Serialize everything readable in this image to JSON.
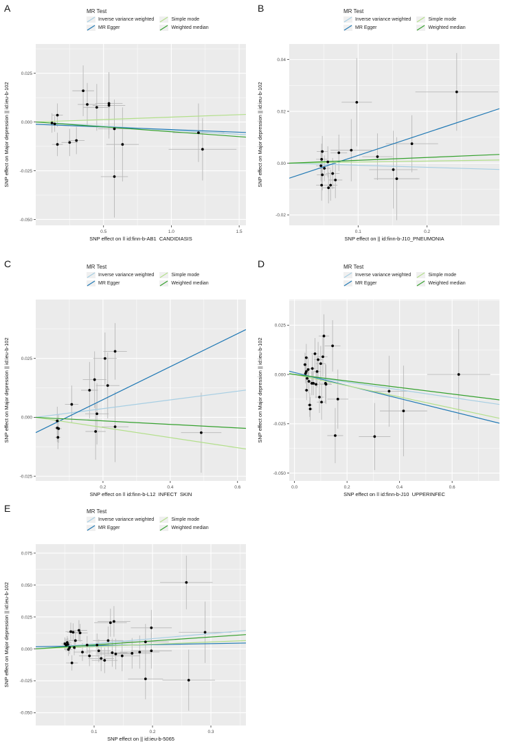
{
  "legend": {
    "title": "MR Test",
    "items": [
      {
        "label": "Inverse variance weighted",
        "color": "#a6cee3"
      },
      {
        "label": "Simple mode",
        "color": "#b2df8a"
      },
      {
        "label": "MR Egger",
        "color": "#1f78b4"
      },
      {
        "label": "Weighted median",
        "color": "#33a02c"
      }
    ]
  },
  "colors": {
    "panel_bg": "#ebebeb",
    "grid": "#ffffff",
    "point": "#000000",
    "errorbar": "#b8b8b8"
  },
  "chart_data": [
    {
      "panel": "A",
      "type": "scatter",
      "xlabel": "SNP effect on  || id:finn-b-AB1_CANDIDIASIS",
      "ylabel": "SNP effect on Major depression || id:ieu-b-102",
      "xlim": [
        0.0,
        1.55
      ],
      "ylim": [
        -0.053,
        0.04
      ],
      "xticks": [
        0.5,
        1.0,
        1.5
      ],
      "xtick_labels": [
        "0.5",
        "1.0",
        "1.5"
      ],
      "yticks": [
        -0.05,
        -0.025,
        0.0,
        0.025
      ],
      "ytick_labels": [
        "-0.050",
        "-0.025",
        "0.000",
        "0.025"
      ],
      "points": [
        {
          "x": 0.12,
          "y": -0.0005,
          "xerr": 0.03,
          "yerr": 0.005
        },
        {
          "x": 0.14,
          "y": -0.001,
          "xerr": 0.03,
          "yerr": 0.004
        },
        {
          "x": 0.16,
          "y": 0.0035,
          "xerr": 0.04,
          "yerr": 0.006
        },
        {
          "x": 0.16,
          "y": -0.0115,
          "xerr": 0.04,
          "yerr": 0.006
        },
        {
          "x": 0.25,
          "y": -0.0105,
          "xerr": 0.06,
          "yerr": 0.007
        },
        {
          "x": 0.3,
          "y": -0.0095,
          "xerr": 0.06,
          "yerr": 0.007
        },
        {
          "x": 0.35,
          "y": 0.016,
          "xerr": 0.08,
          "yerr": 0.013
        },
        {
          "x": 0.38,
          "y": 0.009,
          "xerr": 0.07,
          "yerr": 0.011
        },
        {
          "x": 0.45,
          "y": 0.0075,
          "xerr": 0.1,
          "yerr": 0.012
        },
        {
          "x": 0.54,
          "y": 0.0085,
          "xerr": 0.12,
          "yerr": 0.017
        },
        {
          "x": 0.54,
          "y": 0.0095,
          "xerr": 0.1,
          "yerr": 0.016
        },
        {
          "x": 0.58,
          "y": -0.0035,
          "xerr": 0.12,
          "yerr": 0.015
        },
        {
          "x": 0.58,
          "y": -0.028,
          "xerr": 0.1,
          "yerr": 0.021
        },
        {
          "x": 0.64,
          "y": -0.0115,
          "xerr": 0.12,
          "yerr": 0.019
        },
        {
          "x": 1.2,
          "y": -0.0055,
          "xerr": 0.19,
          "yerr": 0.015
        },
        {
          "x": 1.23,
          "y": -0.014,
          "xerr": 0.25,
          "yerr": 0.016
        }
      ],
      "lines": [
        {
          "method": "Inverse variance weighted",
          "slope": -0.0042,
          "intercept": 0.0
        },
        {
          "method": "MR Egger",
          "slope": -0.0027,
          "intercept": -0.0012
        },
        {
          "method": "Simple mode",
          "slope": 0.0025,
          "intercept": 0.0
        },
        {
          "method": "Weighted median",
          "slope": -0.005,
          "intercept": 0.0
        }
      ]
    },
    {
      "panel": "B",
      "type": "scatter",
      "xlabel": "SNP effect on  || id:finn-b-J10_PNEUMONIA",
      "ylabel": "SNP effect on Major depression || id:ieu-b-102",
      "xlim": [
        0.0,
        0.305
      ],
      "ylim": [
        -0.024,
        0.046
      ],
      "xticks": [
        0.1,
        0.2
      ],
      "xtick_labels": [
        "0.1",
        "0.2"
      ],
      "yticks": [
        -0.02,
        0.0,
        0.02,
        0.04
      ],
      "ytick_labels": [
        "-0.02",
        "0.00",
        "0.02",
        "0.04"
      ],
      "points": [
        {
          "x": 0.048,
          "y": 0.0045,
          "xerr": 0.008,
          "yerr": 0.006
        },
        {
          "x": 0.047,
          "y": 0.0015,
          "xerr": 0.008,
          "yerr": 0.006
        },
        {
          "x": 0.046,
          "y": -0.001,
          "xerr": 0.007,
          "yerr": 0.006
        },
        {
          "x": 0.048,
          "y": -0.0045,
          "xerr": 0.008,
          "yerr": 0.006
        },
        {
          "x": 0.047,
          "y": -0.0085,
          "xerr": 0.008,
          "yerr": 0.006
        },
        {
          "x": 0.051,
          "y": -0.002,
          "xerr": 0.009,
          "yerr": 0.005
        },
        {
          "x": 0.056,
          "y": 0.0005,
          "xerr": 0.009,
          "yerr": 0.006
        },
        {
          "x": 0.057,
          "y": -0.0095,
          "xerr": 0.009,
          "yerr": 0.006
        },
        {
          "x": 0.06,
          "y": -0.0085,
          "xerr": 0.01,
          "yerr": 0.006
        },
        {
          "x": 0.063,
          "y": -0.004,
          "xerr": 0.01,
          "yerr": 0.006
        },
        {
          "x": 0.067,
          "y": -0.0065,
          "xerr": 0.01,
          "yerr": 0.007
        },
        {
          "x": 0.072,
          "y": 0.004,
          "xerr": 0.012,
          "yerr": 0.007
        },
        {
          "x": 0.09,
          "y": 0.005,
          "xerr": 0.03,
          "yerr": 0.012
        },
        {
          "x": 0.098,
          "y": 0.0235,
          "xerr": 0.022,
          "yerr": 0.017
        },
        {
          "x": 0.128,
          "y": 0.0025,
          "xerr": 0.022,
          "yerr": 0.009
        },
        {
          "x": 0.151,
          "y": -0.0025,
          "xerr": 0.035,
          "yerr": 0.015
        },
        {
          "x": 0.156,
          "y": -0.006,
          "xerr": 0.033,
          "yerr": 0.016
        },
        {
          "x": 0.178,
          "y": 0.0075,
          "xerr": 0.038,
          "yerr": 0.011
        },
        {
          "x": 0.243,
          "y": 0.0275,
          "xerr": 0.06,
          "yerr": 0.015
        }
      ],
      "lines": [
        {
          "method": "Inverse variance weighted",
          "slope": -0.008,
          "intercept": 0.0
        },
        {
          "method": "MR Egger",
          "slope": 0.088,
          "intercept": -0.0058
        },
        {
          "method": "Simple mode",
          "slope": 0.004,
          "intercept": 0.0
        },
        {
          "method": "Weighted median",
          "slope": 0.011,
          "intercept": 0.0
        }
      ]
    },
    {
      "panel": "C",
      "type": "scatter",
      "xlabel": "SNP effect on  || id:finn-b-L12_INFECT_SKIN",
      "ylabel": "SNP effect on Major depression || id:ieu-b-102",
      "xlim": [
        0.0,
        0.625
      ],
      "ylim": [
        -0.027,
        0.05
      ],
      "xticks": [
        0.2,
        0.4,
        0.6
      ],
      "xtick_labels": [
        "0.2",
        "0.4",
        "0.6"
      ],
      "yticks": [
        -0.025,
        0.0,
        0.025
      ],
      "ytick_labels": [
        "-0.025",
        "0.000",
        "0.025"
      ],
      "points": [
        {
          "x": 0.064,
          "y": -0.0015,
          "xerr": 0.008,
          "yerr": 0.006
        },
        {
          "x": 0.064,
          "y": -0.0045,
          "xerr": 0.008,
          "yerr": 0.006
        },
        {
          "x": 0.066,
          "y": -0.0085,
          "xerr": 0.008,
          "yerr": 0.005
        },
        {
          "x": 0.068,
          "y": -0.0048,
          "xerr": 0.009,
          "yerr": 0.006
        },
        {
          "x": 0.107,
          "y": 0.0055,
          "xerr": 0.02,
          "yerr": 0.008
        },
        {
          "x": 0.16,
          "y": 0.0115,
          "xerr": 0.025,
          "yerr": 0.012
        },
        {
          "x": 0.175,
          "y": 0.016,
          "xerr": 0.035,
          "yerr": 0.012
        },
        {
          "x": 0.178,
          "y": -0.006,
          "xerr": 0.03,
          "yerr": 0.012
        },
        {
          "x": 0.182,
          "y": 0.0015,
          "xerr": 0.035,
          "yerr": 0.013
        },
        {
          "x": 0.206,
          "y": 0.025,
          "xerr": 0.035,
          "yerr": 0.011
        },
        {
          "x": 0.214,
          "y": 0.0135,
          "xerr": 0.035,
          "yerr": 0.014
        },
        {
          "x": 0.236,
          "y": 0.028,
          "xerr": 0.035,
          "yerr": 0.012
        },
        {
          "x": 0.236,
          "y": -0.004,
          "xerr": 0.04,
          "yerr": 0.015
        },
        {
          "x": 0.492,
          "y": -0.0065,
          "xerr": 0.06,
          "yerr": 0.017
        }
      ],
      "lines": [
        {
          "method": "Inverse variance weighted",
          "slope": 0.0185,
          "intercept": 0.0
        },
        {
          "method": "MR Egger",
          "slope": 0.07,
          "intercept": -0.0065
        },
        {
          "method": "Simple mode",
          "slope": -0.0215,
          "intercept": 0.0
        },
        {
          "method": "Weighted median",
          "slope": -0.0075,
          "intercept": 0.0
        }
      ]
    },
    {
      "panel": "D",
      "type": "scatter",
      "xlabel": "SNP effect on  || id:finn-b-J10_UPPERINFEC",
      "ylabel": "SNP effect on Major depression || id:ieu-b-102",
      "xlim": [
        -0.02,
        0.78
      ],
      "ylim": [
        -0.054,
        0.038
      ],
      "xticks": [
        0.0,
        0.2,
        0.4,
        0.6
      ],
      "xtick_labels": [
        "0.0",
        "0.2",
        "0.4",
        "0.6"
      ],
      "yticks": [
        -0.05,
        -0.025,
        0.0,
        0.025
      ],
      "ytick_labels": [
        "-0.050",
        "-0.025",
        "0.000",
        "0.025"
      ],
      "points": [
        {
          "x": 0.045,
          "y": 0.0085,
          "xerr": 0.008,
          "yerr": 0.007
        },
        {
          "x": 0.04,
          "y": 0.005,
          "xerr": 0.008,
          "yerr": 0.006
        },
        {
          "x": 0.045,
          "y": 0.0015,
          "xerr": 0.008,
          "yerr": 0.005
        },
        {
          "x": 0.042,
          "y": 0.0005,
          "xerr": 0.008,
          "yerr": 0.005
        },
        {
          "x": 0.048,
          "y": -0.002,
          "xerr": 0.008,
          "yerr": 0.005
        },
        {
          "x": 0.046,
          "y": -0.008,
          "xerr": 0.008,
          "yerr": 0.005
        },
        {
          "x": 0.052,
          "y": 0.0025,
          "xerr": 0.009,
          "yerr": 0.006
        },
        {
          "x": 0.055,
          "y": -0.0035,
          "xerr": 0.01,
          "yerr": 0.006
        },
        {
          "x": 0.058,
          "y": -0.0155,
          "xerr": 0.01,
          "yerr": 0.006
        },
        {
          "x": 0.06,
          "y": -0.0175,
          "xerr": 0.01,
          "yerr": 0.006
        },
        {
          "x": 0.066,
          "y": -0.0045,
          "xerr": 0.011,
          "yerr": 0.006
        },
        {
          "x": 0.068,
          "y": 0.003,
          "xerr": 0.012,
          "yerr": 0.007
        },
        {
          "x": 0.072,
          "y": -0.0045,
          "xerr": 0.012,
          "yerr": 0.006
        },
        {
          "x": 0.078,
          "y": 0.0105,
          "xerr": 0.014,
          "yerr": 0.008
        },
        {
          "x": 0.082,
          "y": -0.005,
          "xerr": 0.014,
          "yerr": 0.007
        },
        {
          "x": 0.086,
          "y": 0.0015,
          "xerr": 0.014,
          "yerr": 0.008
        },
        {
          "x": 0.09,
          "y": 0.0075,
          "xerr": 0.016,
          "yerr": 0.009
        },
        {
          "x": 0.095,
          "y": -0.0115,
          "xerr": 0.016,
          "yerr": 0.008
        },
        {
          "x": 0.1,
          "y": 0.0055,
          "xerr": 0.018,
          "yerr": 0.009
        },
        {
          "x": 0.103,
          "y": -0.014,
          "xerr": 0.018,
          "yerr": 0.009
        },
        {
          "x": 0.108,
          "y": 0.009,
          "xerr": 0.018,
          "yerr": 0.01
        },
        {
          "x": 0.112,
          "y": 0.0195,
          "xerr": 0.02,
          "yerr": 0.011
        },
        {
          "x": 0.118,
          "y": -0.0045,
          "xerr": 0.022,
          "yerr": 0.01
        },
        {
          "x": 0.12,
          "y": -0.005,
          "xerr": 0.022,
          "yerr": 0.01
        },
        {
          "x": 0.145,
          "y": 0.0145,
          "xerr": 0.03,
          "yerr": 0.013
        },
        {
          "x": 0.155,
          "y": -0.031,
          "xerr": 0.03,
          "yerr": 0.014
        },
        {
          "x": 0.165,
          "y": -0.0125,
          "xerr": 0.04,
          "yerr": 0.015
        },
        {
          "x": 0.305,
          "y": -0.0315,
          "xerr": 0.06,
          "yerr": 0.017
        },
        {
          "x": 0.36,
          "y": -0.0085,
          "xerr": 0.07,
          "yerr": 0.018
        },
        {
          "x": 0.415,
          "y": -0.0185,
          "xerr": 0.09,
          "yerr": 0.023
        },
        {
          "x": 0.625,
          "y": 0.0,
          "xerr": 0.12,
          "yerr": 0.023
        }
      ],
      "lines": [
        {
          "method": "Inverse variance weighted",
          "slope": -0.0195,
          "intercept": 0.0
        },
        {
          "method": "MR Egger",
          "slope": -0.033,
          "intercept": 0.001
        },
        {
          "method": "Simple mode",
          "slope": -0.0285,
          "intercept": 0.0
        },
        {
          "method": "Weighted median",
          "slope": -0.0165,
          "intercept": 0.0
        }
      ]
    },
    {
      "panel": "E",
      "type": "scatter",
      "xlabel": "SNP effect on  || id:ieu-b-5065",
      "ylabel": "SNP effect on Major depression || id:ieu-b-102",
      "xlim": [
        0.0,
        0.36
      ],
      "ylim": [
        -0.06,
        0.082
      ],
      "xticks": [
        0.1,
        0.2,
        0.3
      ],
      "xtick_labels": [
        "0.1",
        "0.2",
        "0.3"
      ],
      "yticks": [
        -0.05,
        -0.025,
        0.0,
        0.025,
        0.05,
        0.075
      ],
      "ytick_labels": [
        "-0.050",
        "-0.025",
        "0.000",
        "0.025",
        "0.050",
        "0.075"
      ],
      "points": [
        {
          "x": 0.05,
          "y": 0.004,
          "xerr": 0.006,
          "yerr": 0.005
        },
        {
          "x": 0.052,
          "y": 0.003,
          "xerr": 0.006,
          "yerr": 0.005
        },
        {
          "x": 0.054,
          "y": 0.005,
          "xerr": 0.007,
          "yerr": 0.005
        },
        {
          "x": 0.055,
          "y": 0.0035,
          "xerr": 0.007,
          "yerr": 0.005
        },
        {
          "x": 0.056,
          "y": -0.0005,
          "xerr": 0.007,
          "yerr": 0.005
        },
        {
          "x": 0.058,
          "y": 0.001,
          "xerr": 0.008,
          "yerr": 0.005
        },
        {
          "x": 0.06,
          "y": 0.0135,
          "xerr": 0.009,
          "yerr": 0.007
        },
        {
          "x": 0.062,
          "y": -0.011,
          "xerr": 0.01,
          "yerr": 0.006
        },
        {
          "x": 0.064,
          "y": 0.013,
          "xerr": 0.01,
          "yerr": 0.007
        },
        {
          "x": 0.066,
          "y": 0.001,
          "xerr": 0.012,
          "yerr": 0.006
        },
        {
          "x": 0.068,
          "y": 0.0065,
          "xerr": 0.012,
          "yerr": 0.007
        },
        {
          "x": 0.074,
          "y": 0.0145,
          "xerr": 0.014,
          "yerr": 0.008
        },
        {
          "x": 0.076,
          "y": 0.0125,
          "xerr": 0.013,
          "yerr": 0.007
        },
        {
          "x": 0.08,
          "y": -0.0025,
          "xerr": 0.015,
          "yerr": 0.007
        },
        {
          "x": 0.088,
          "y": 0.003,
          "xerr": 0.016,
          "yerr": 0.007
        },
        {
          "x": 0.092,
          "y": -0.0055,
          "xerr": 0.018,
          "yerr": 0.008
        },
        {
          "x": 0.105,
          "y": 0.003,
          "xerr": 0.02,
          "yerr": 0.009
        },
        {
          "x": 0.108,
          "y": -0.0015,
          "xerr": 0.02,
          "yerr": 0.009
        },
        {
          "x": 0.112,
          "y": -0.0075,
          "xerr": 0.022,
          "yerr": 0.01
        },
        {
          "x": 0.118,
          "y": -0.009,
          "xerr": 0.022,
          "yerr": 0.01
        },
        {
          "x": 0.124,
          "y": 0.0065,
          "xerr": 0.026,
          "yerr": 0.011
        },
        {
          "x": 0.128,
          "y": 0.0205,
          "xerr": 0.028,
          "yerr": 0.011
        },
        {
          "x": 0.131,
          "y": -0.003,
          "xerr": 0.026,
          "yerr": 0.011
        },
        {
          "x": 0.134,
          "y": 0.0215,
          "xerr": 0.028,
          "yerr": 0.012
        },
        {
          "x": 0.137,
          "y": -0.004,
          "xerr": 0.028,
          "yerr": 0.012
        },
        {
          "x": 0.148,
          "y": -0.0055,
          "xerr": 0.03,
          "yerr": 0.012
        },
        {
          "x": 0.165,
          "y": -0.0035,
          "xerr": 0.032,
          "yerr": 0.012
        },
        {
          "x": 0.178,
          "y": -0.0025,
          "xerr": 0.034,
          "yerr": 0.013
        },
        {
          "x": 0.188,
          "y": 0.0055,
          "xerr": 0.04,
          "yerr": 0.014
        },
        {
          "x": 0.188,
          "y": -0.0235,
          "xerr": 0.03,
          "yerr": 0.016
        },
        {
          "x": 0.198,
          "y": 0.0165,
          "xerr": 0.035,
          "yerr": 0.014
        },
        {
          "x": 0.198,
          "y": -0.0015,
          "xerr": 0.035,
          "yerr": 0.014
        },
        {
          "x": 0.258,
          "y": 0.052,
          "xerr": 0.045,
          "yerr": 0.021
        },
        {
          "x": 0.262,
          "y": -0.0245,
          "xerr": 0.045,
          "yerr": 0.024
        },
        {
          "x": 0.29,
          "y": 0.013,
          "xerr": 0.045,
          "yerr": 0.024
        }
      ],
      "lines": [
        {
          "method": "Inverse variance weighted",
          "slope": 0.04,
          "intercept": 0.0
        },
        {
          "method": "MR Egger",
          "slope": 0.008,
          "intercept": 0.0017
        },
        {
          "method": "Simple mode",
          "slope": 0.018,
          "intercept": 0.0
        },
        {
          "method": "Weighted median",
          "slope": 0.031,
          "intercept": 0.0
        }
      ]
    }
  ]
}
